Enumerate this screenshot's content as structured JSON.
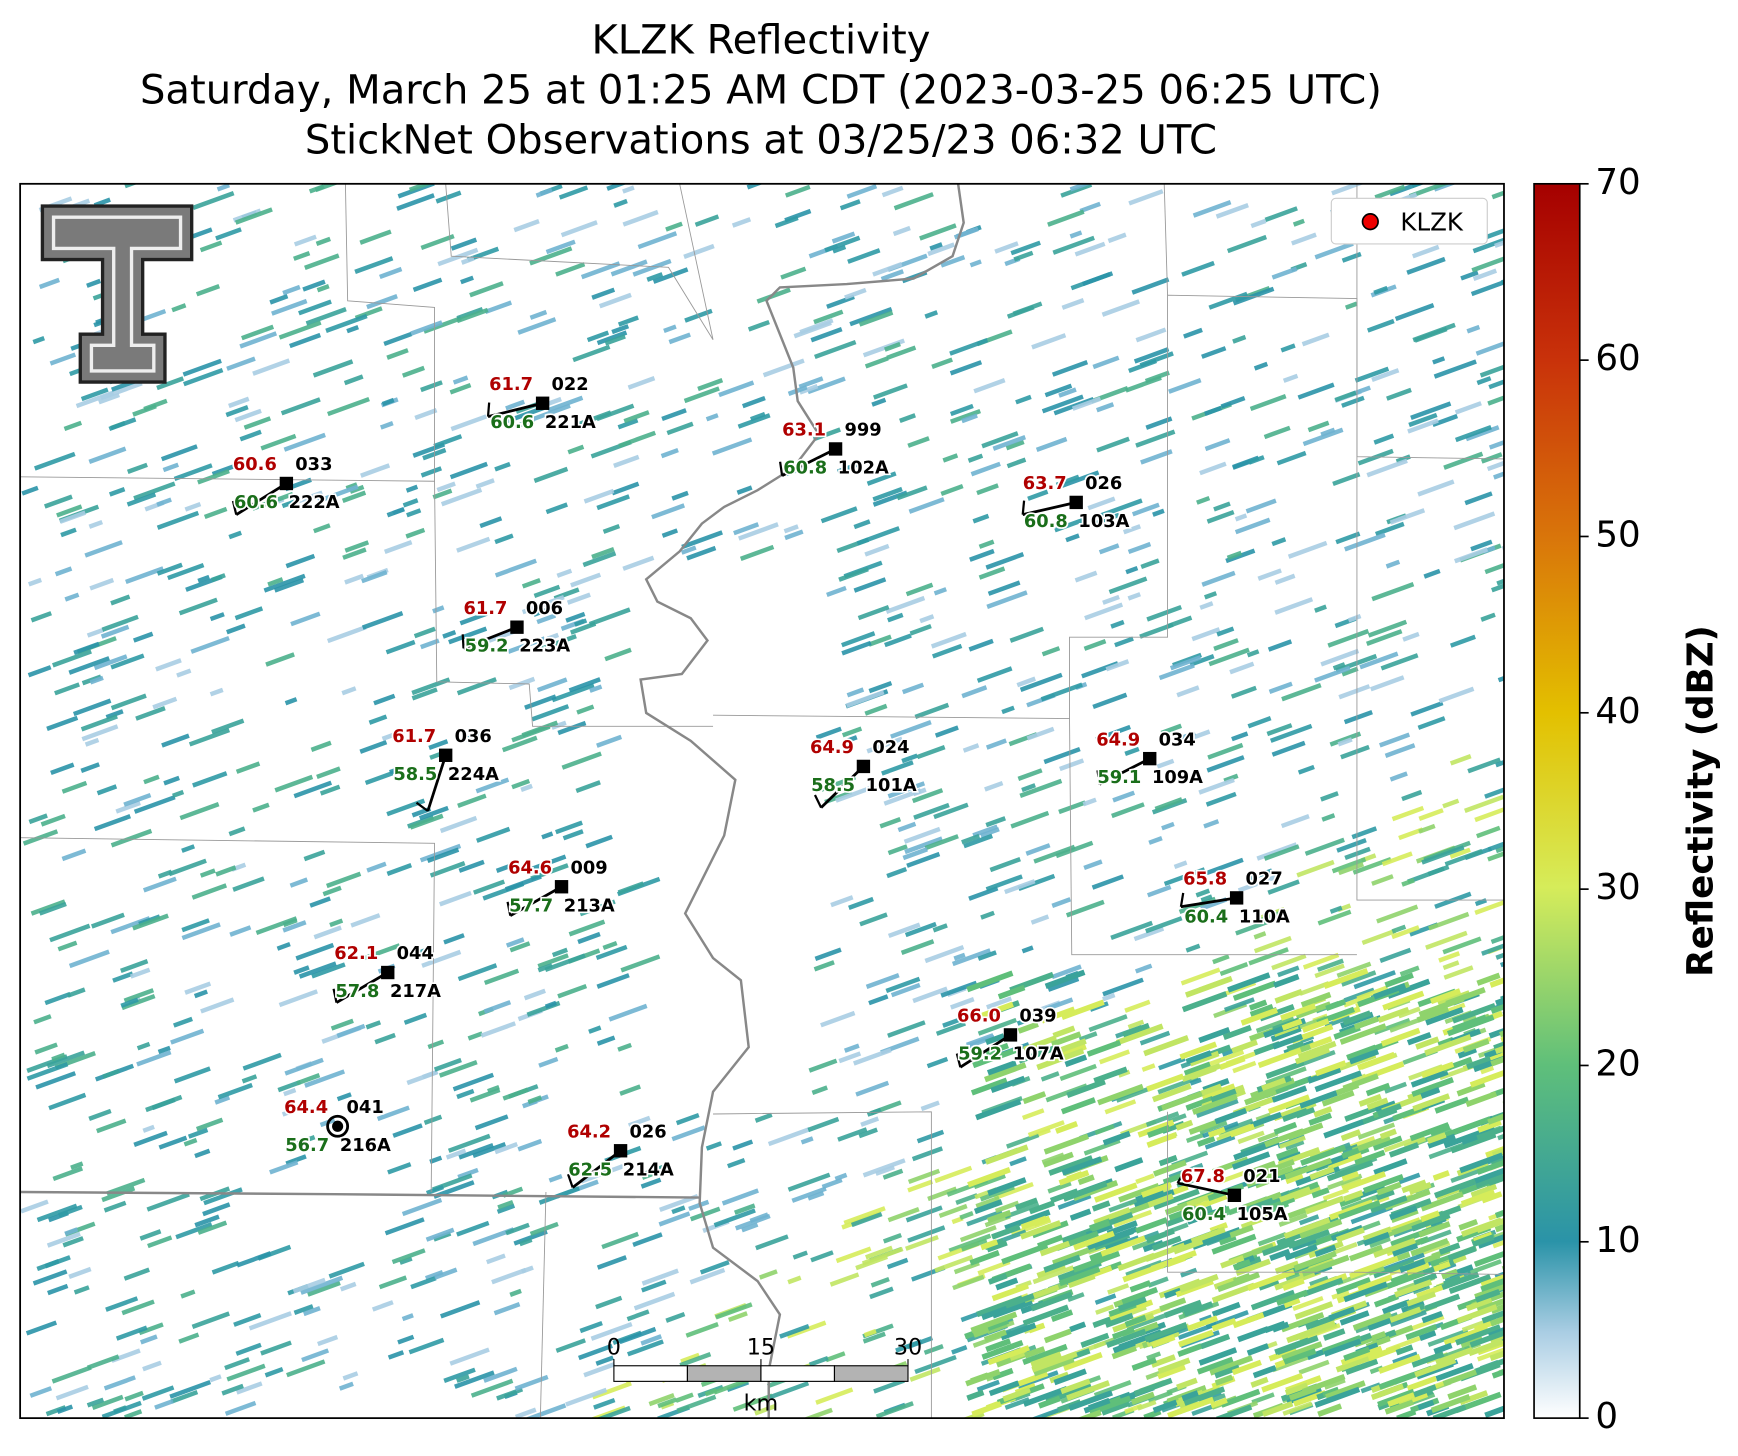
{
  "title": [
    "KLZK Reflectivity",
    "Saturday, March 25 at 01:25 AM CDT (2023-03-25 06:25 UTC)",
    "StickNet Observations at 03/25/23 06:32 UTC"
  ],
  "legend": {
    "label": "KLZK"
  },
  "colorbar": {
    "label": "Reflectivity (dBZ)",
    "lim": [
      0,
      70
    ],
    "ticks": [
      0,
      10,
      20,
      30,
      40,
      50,
      60,
      70
    ]
  },
  "scale_bar": {
    "lim": [
      0,
      30
    ],
    "ticks": [
      0,
      15,
      30
    ],
    "unit": "km"
  },
  "stations": [
    {
      "id": "222A",
      "temperature": "60.6",
      "dewpoint": "60.6",
      "pressure": "033"
    },
    {
      "id": "221A",
      "temperature": "61.7",
      "dewpoint": "60.6",
      "pressure": "022"
    },
    {
      "id": "102A",
      "temperature": "63.1",
      "dewpoint": "60.8",
      "pressure": "999"
    },
    {
      "id": "103A",
      "temperature": "63.7",
      "dewpoint": "60.8",
      "pressure": "026"
    },
    {
      "id": "223A",
      "temperature": "61.7",
      "dewpoint": "59.2",
      "pressure": "006"
    },
    {
      "id": "224A",
      "temperature": "61.7",
      "dewpoint": "58.5",
      "pressure": "036"
    },
    {
      "id": "101A",
      "temperature": "64.9",
      "dewpoint": "58.5",
      "pressure": "024"
    },
    {
      "id": "109A",
      "temperature": "64.9",
      "dewpoint": "59.1",
      "pressure": "034"
    },
    {
      "id": "213A",
      "temperature": "64.6",
      "dewpoint": "57.7",
      "pressure": "009"
    },
    {
      "id": "110A",
      "temperature": "65.8",
      "dewpoint": "60.4",
      "pressure": "027"
    },
    {
      "id": "217A",
      "temperature": "62.1",
      "dewpoint": "57.8",
      "pressure": "044"
    },
    {
      "id": "107A",
      "temperature": "66.0",
      "dewpoint": "59.2",
      "pressure": "039"
    },
    {
      "id": "216A",
      "temperature": "64.4",
      "dewpoint": "56.7",
      "pressure": "041"
    },
    {
      "id": "214A",
      "temperature": "64.2",
      "dewpoint": "62.5",
      "pressure": "026"
    },
    {
      "id": "105A",
      "temperature": "67.8",
      "dewpoint": "60.4",
      "pressure": "021"
    }
  ]
}
